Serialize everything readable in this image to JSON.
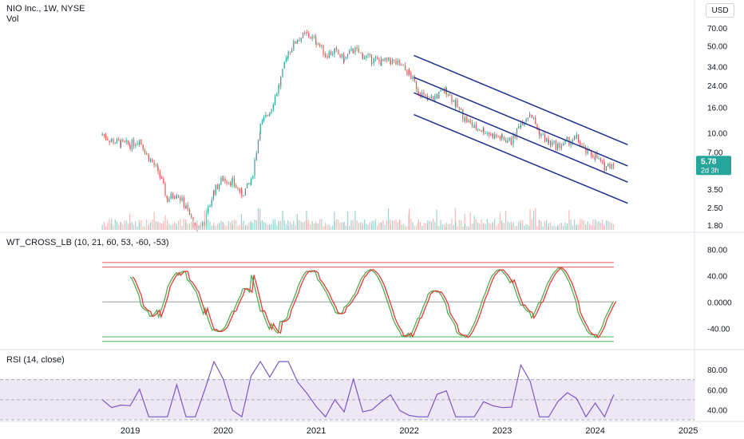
{
  "header": {
    "symbol": "NIO Inc., 1W, NYSE",
    "vol_label": "Vol",
    "currency_button": "USD"
  },
  "price_badge": {
    "value": "5.78",
    "countdown": "2d 3h"
  },
  "indicators": {
    "wt_title": "WT_CROSS_LB (10, 21, 60, 53, -60, -53)",
    "rsi_title": "RSI (14, close)"
  },
  "colors": {
    "up": "#26a69a",
    "down": "#ef5350",
    "channel": "#1f2e8f",
    "badge": "#26a69a",
    "rsi_line": "#7e57c2",
    "rsi_band": "#ede7f6",
    "wt1": "#4caf50",
    "wt2": "#e53935",
    "wt_area": "#b39ddb"
  },
  "chart_data": [
    {
      "type": "candlestick",
      "scale": "log",
      "y_ticks": [
        "70.00",
        "50.00",
        "34.00",
        "24.00",
        "16.00",
        "10.00",
        "7.00",
        "3.50",
        "2.50",
        "1.80"
      ],
      "ylim": [
        1.6,
        90
      ],
      "x_ticks": [
        "2019",
        "2020",
        "2021",
        "2022",
        "2023",
        "2024",
        "2025"
      ],
      "x_tick_years": [
        2019,
        2020,
        2021,
        2022,
        2023,
        2024,
        2025
      ],
      "xlim": [
        2017.6,
        2025.6
      ],
      "close_series": {
        "x": [
          2018.7,
          2018.8,
          2018.9,
          2019.0,
          2019.1,
          2019.2,
          2019.3,
          2019.4,
          2019.5,
          2019.6,
          2019.7,
          2019.8,
          2019.9,
          2020.0,
          2020.1,
          2020.2,
          2020.3,
          2020.4,
          2020.5,
          2020.6,
          2020.7,
          2020.8,
          2020.9,
          2021.0,
          2021.1,
          2021.2,
          2021.3,
          2021.4,
          2021.5,
          2021.6,
          2021.7,
          2021.8,
          2021.9,
          2022.0,
          2022.1,
          2022.2,
          2022.3,
          2022.4,
          2022.5,
          2022.6,
          2022.7,
          2022.8,
          2022.9,
          2023.0,
          2023.1,
          2023.2,
          2023.3,
          2023.4,
          2023.5,
          2023.6,
          2023.7,
          2023.8,
          2023.9,
          2024.0,
          2024.1,
          2024.2
        ],
        "values": [
          9.8,
          8.6,
          8.2,
          8.0,
          8.8,
          6.3,
          4.9,
          2.9,
          3.3,
          2.5,
          1.7,
          1.9,
          3.4,
          4.3,
          4.0,
          3.2,
          4.0,
          11.3,
          15.0,
          24.0,
          45.0,
          57.0,
          62.0,
          55.0,
          43.0,
          45.0,
          39.0,
          47.0,
          42.0,
          39.0,
          37.0,
          38.0,
          35.0,
          30.0,
          22.0,
          18.0,
          20.0,
          22.0,
          17.0,
          13.0,
          11.0,
          10.5,
          9.5,
          9.0,
          8.5,
          12.0,
          14.5,
          10.0,
          8.3,
          7.8,
          8.5,
          9.0,
          7.0,
          6.5,
          5.3,
          5.78
        ]
      },
      "volume": {
        "label": "Vol"
      },
      "regression_channel": {
        "start_x": 2022.05,
        "end_x": 2024.35,
        "mid_start": 21.0,
        "mid_end": 4.0,
        "upper_start": 42.0,
        "upper_end": 8.0,
        "upper_inner_start": 28.0,
        "upper_inner_end": 5.4,
        "lower_start": 14.0,
        "lower_end": 2.7
      }
    },
    {
      "type": "line",
      "title": "WT_CROSS_LB (10, 21, 60, 53, -60, -53)",
      "y_ticks": [
        "80.00",
        "40.00",
        "0.0000",
        "-40.00"
      ],
      "ylim": [
        -70,
        95
      ],
      "levels": {
        "ob1": 60,
        "ob2": 53,
        "os1": -53,
        "os2": -60,
        "zero": 0
      }
    },
    {
      "type": "line",
      "title": "RSI (14, close)",
      "y_ticks": [
        "80.00",
        "60.00",
        "40.00"
      ],
      "ylim": [
        30,
        92
      ],
      "band": [
        30,
        70
      ],
      "mid": 50
    }
  ]
}
